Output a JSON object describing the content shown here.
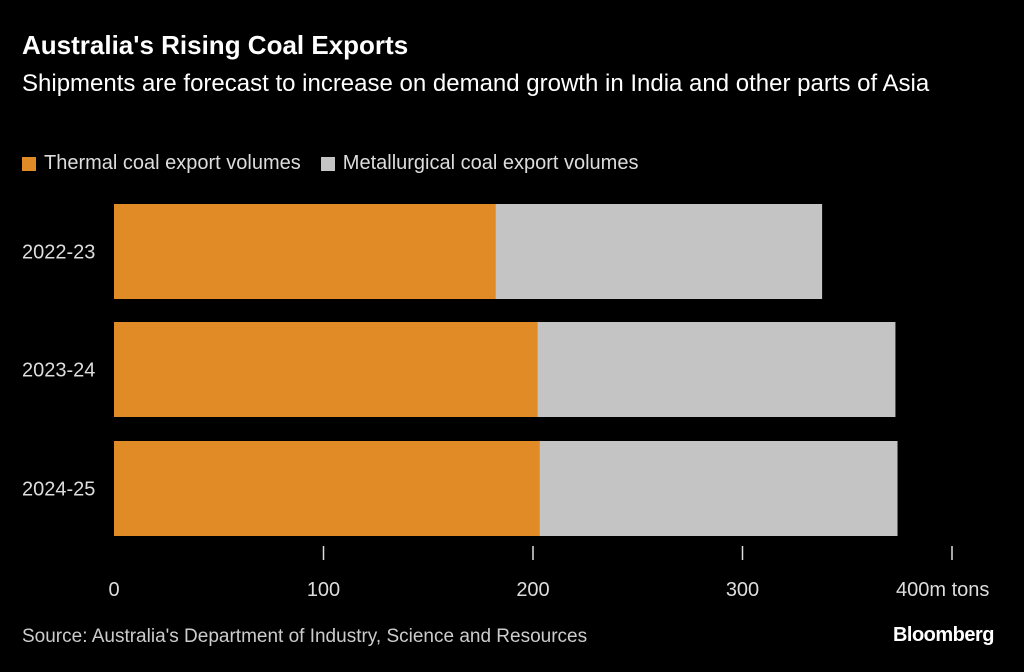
{
  "title": "Australia's Rising Coal Exports",
  "subtitle": "Shipments are forecast to increase on demand growth in India and other parts of Asia",
  "source": "Source: Australia's Department of Industry, Science and Resources",
  "logo": "Bloomberg",
  "chart_data": {
    "type": "bar",
    "orientation": "horizontal",
    "stacked": true,
    "categories": [
      "2022-23",
      "2023-24",
      "2024-25"
    ],
    "series": [
      {
        "name": "Thermal coal export volumes",
        "color": "#e08b25",
        "values": [
          182,
          202,
          203
        ]
      },
      {
        "name": "Metallurgical coal export volumes",
        "color": "#c4c4c4",
        "values": [
          156,
          171,
          171
        ]
      }
    ],
    "xlim": [
      0,
      400
    ],
    "xticks": [
      "0",
      "100",
      "200",
      "300",
      "400m tons"
    ],
    "xtick_values": [
      0,
      100,
      200,
      300,
      400
    ],
    "legend": "top-left",
    "grid": false
  }
}
